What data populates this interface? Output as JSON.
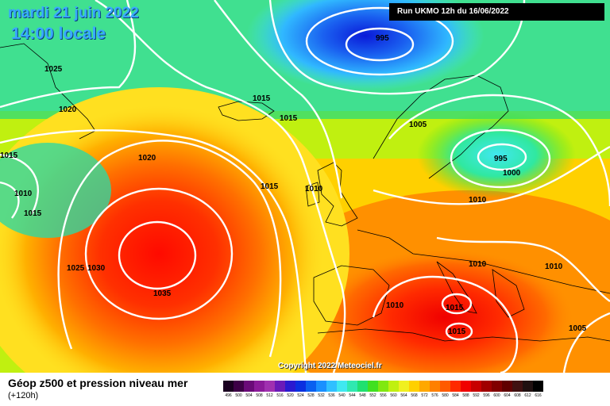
{
  "header": {
    "date": "mardi 21 juin 2022",
    "time": "14:00 locale",
    "run": "Run UKMO 12h du 16/06/2022"
  },
  "copyright": "Copyright 2022 Meteociel.fr",
  "footer": {
    "title": "Géop z500 et pression niveau mer",
    "subtitle": "(+120h)"
  },
  "isobar_labels": [
    "995",
    "1025",
    "1020",
    "1015",
    "1015",
    "1015",
    "1010",
    "1015",
    "1020",
    "1005",
    "995",
    "1000",
    "1015",
    "1010",
    "1010",
    "1025",
    "1030",
    "1035",
    "1010",
    "1010",
    "1010",
    "1015",
    "1015",
    "1005"
  ],
  "legend": [
    {
      "label": "496",
      "color": "#1a0020"
    },
    {
      "label": "500",
      "color": "#3d0046"
    },
    {
      "label": "504",
      "color": "#6a0a78"
    },
    {
      "label": "508",
      "color": "#8b1a9a"
    },
    {
      "label": "512",
      "color": "#a030b0"
    },
    {
      "label": "516",
      "color": "#6a1ab8"
    },
    {
      "label": "520",
      "color": "#2a1ad0"
    },
    {
      "label": "524",
      "color": "#0a30e0"
    },
    {
      "label": "528",
      "color": "#0a60f0"
    },
    {
      "label": "532",
      "color": "#1a90ff"
    },
    {
      "label": "536",
      "color": "#30c0ff"
    },
    {
      "label": "540",
      "color": "#40e8f0"
    },
    {
      "label": "544",
      "color": "#30e8b0"
    },
    {
      "label": "548",
      "color": "#20e070"
    },
    {
      "label": "552",
      "color": "#40e020"
    },
    {
      "label": "556",
      "color": "#80e810"
    },
    {
      "label": "560",
      "color": "#c0f010"
    },
    {
      "label": "564",
      "color": "#f0f020"
    },
    {
      "label": "568",
      "color": "#ffd000"
    },
    {
      "label": "572",
      "color": "#ffa800"
    },
    {
      "label": "576",
      "color": "#ff8000"
    },
    {
      "label": "580",
      "color": "#ff5a00"
    },
    {
      "label": "584",
      "color": "#ff2a00"
    },
    {
      "label": "588",
      "color": "#f00000"
    },
    {
      "label": "592",
      "color": "#c80000"
    },
    {
      "label": "596",
      "color": "#a00000"
    },
    {
      "label": "600",
      "color": "#800000"
    },
    {
      "label": "604",
      "color": "#600000"
    },
    {
      "label": "608",
      "color": "#401010"
    },
    {
      "label": "612",
      "color": "#201010"
    },
    {
      "label": "616",
      "color": "#000000"
    }
  ]
}
